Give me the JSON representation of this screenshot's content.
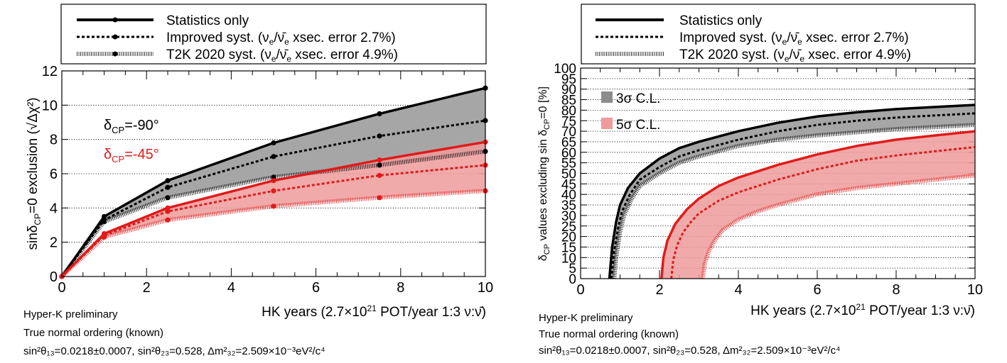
{
  "colors": {
    "black": "#000000",
    "red": "#e01b1b",
    "grey_band": "#a6a6a6",
    "pink_band": "#ef9b9b",
    "legend_bg": "#ffffff"
  },
  "line_styles": {
    "stat_only": "solid",
    "improved": "dashed",
    "t2k2020": "dotted"
  },
  "legend": [
    {
      "label": "Statistics only",
      "style": "stat_only"
    },
    {
      "label": "Improved syst. (ν_e/ν̄_e xsec. error 2.7%)",
      "style": "improved"
    },
    {
      "label": "T2K 2020 syst. (ν_e/ν̄_e xsec. error 4.9%)",
      "style": "t2k2020"
    }
  ],
  "notes": {
    "line1": "Hyper-K preliminary",
    "line2": "True normal ordering (known)",
    "line3": "sin²θ₁₃=0.0218±0.0007, sin²θ₂₃=0.528, Δm²₃₂=2.509×10⁻³eV²/c⁴"
  },
  "chart_data": [
    {
      "type": "line",
      "xlabel": "HK years (2.7×10²¹ POT/year 1:3 ν:ν̄)",
      "ylabel": "sinδ_CP=0 exclusion (√Δχ²)",
      "xlim": [
        0,
        10
      ],
      "ylim": [
        0,
        12
      ],
      "x_ticks": [
        0,
        2,
        4,
        6,
        8,
        10
      ],
      "y_ticks": [
        0,
        2,
        4,
        6,
        8,
        10,
        12
      ],
      "grid": "horizontal",
      "inline_labels": [
        {
          "text": "δ_CP=-90°",
          "color": "black"
        },
        {
          "text": "δ_CP=-45°",
          "color": "red"
        }
      ],
      "x": [
        0,
        1,
        2.5,
        5,
        7.5,
        10
      ],
      "series": [
        {
          "group": "δ_CP=-90°",
          "style": "stat_only",
          "values": [
            0,
            3.5,
            5.6,
            7.8,
            9.5,
            11.0
          ]
        },
        {
          "group": "δ_CP=-90°",
          "style": "improved",
          "values": [
            0,
            3.3,
            5.2,
            7.0,
            8.2,
            9.1
          ]
        },
        {
          "group": "δ_CP=-90°",
          "style": "t2k2020",
          "values": [
            0,
            3.2,
            4.6,
            5.8,
            6.5,
            7.3
          ]
        },
        {
          "group": "δ_CP=-45°",
          "style": "stat_only",
          "values": [
            0,
            2.5,
            4.0,
            5.6,
            6.8,
            7.85
          ]
        },
        {
          "group": "δ_CP=-45°",
          "style": "improved",
          "values": [
            0,
            2.4,
            3.8,
            5.0,
            5.9,
            6.5
          ]
        },
        {
          "group": "δ_CP=-45°",
          "style": "t2k2020",
          "values": [
            0,
            2.3,
            3.3,
            4.1,
            4.6,
            5.0
          ]
        }
      ]
    },
    {
      "type": "line",
      "xlabel": "HK years (2.7×10²¹ POT/year 1:3 ν:ν̄)",
      "ylabel": "δ_CP values excluding sin δ_CP=0 [%]",
      "xlim": [
        0,
        10
      ],
      "ylim": [
        0,
        100
      ],
      "x_ticks": [
        0,
        2,
        4,
        6,
        8,
        10
      ],
      "y_ticks": [
        0,
        5,
        10,
        15,
        20,
        25,
        30,
        35,
        40,
        45,
        50,
        55,
        60,
        65,
        70,
        75,
        80,
        85,
        90,
        95,
        100
      ],
      "grid": "horizontal",
      "band_legend": [
        {
          "label": "3σ C.L.",
          "color": "grey_band"
        },
        {
          "label": "5σ C.L.",
          "color": "pink_band"
        }
      ],
      "series": [
        {
          "group": "3σ C.L.",
          "style": "stat_only",
          "x": [
            0.73,
            0.8,
            0.9,
            1.0,
            1.2,
            1.5,
            2.0,
            2.5,
            3.0,
            4.0,
            5.0,
            6.0,
            7.0,
            8.0,
            9.0,
            10.0
          ],
          "values": [
            0,
            15,
            27,
            35,
            43,
            50,
            57,
            62,
            65,
            70,
            74,
            77,
            79,
            80.5,
            81.5,
            82.5
          ]
        },
        {
          "group": "3σ C.L.",
          "style": "improved",
          "x": [
            0.78,
            0.85,
            0.95,
            1.05,
            1.25,
            1.5,
            2.0,
            2.5,
            3.0,
            4.0,
            5.0,
            6.0,
            7.0,
            8.0,
            9.0,
            10.0
          ],
          "values": [
            0,
            13,
            24,
            32,
            40,
            47,
            53,
            58,
            61,
            66,
            70,
            73,
            75,
            76.5,
            77.5,
            78.5
          ]
        },
        {
          "group": "3σ C.L.",
          "style": "t2k2020",
          "x": [
            0.85,
            0.9,
            1.0,
            1.1,
            1.3,
            1.5,
            2.0,
            2.5,
            3.0,
            4.0,
            5.0,
            6.0,
            7.0,
            8.0,
            9.0,
            10.0
          ],
          "values": [
            0,
            10,
            22,
            30,
            38,
            44,
            50,
            55,
            58,
            63,
            66,
            68,
            69.5,
            71,
            72,
            73
          ]
        },
        {
          "group": "5σ C.L.",
          "style": "stat_only",
          "x": [
            2.05,
            2.1,
            2.2,
            2.4,
            2.7,
            3.0,
            3.5,
            4.0,
            5.0,
            6.0,
            7.0,
            8.0,
            9.0,
            10.0
          ],
          "values": [
            0,
            10,
            18,
            26,
            33,
            38,
            44,
            48,
            54,
            59,
            63,
            66,
            68,
            70
          ]
        },
        {
          "group": "5σ C.L.",
          "style": "improved",
          "x": [
            2.3,
            2.35,
            2.45,
            2.6,
            2.8,
            3.0,
            3.5,
            4.0,
            5.0,
            6.0,
            7.0,
            8.0,
            9.0,
            10.0
          ],
          "values": [
            0,
            9,
            16,
            22,
            27,
            31,
            37,
            41,
            47,
            52,
            56,
            58.5,
            60.5,
            62.5
          ]
        },
        {
          "group": "5σ C.L.",
          "style": "t2k2020",
          "x": [
            3.1,
            3.15,
            3.25,
            3.4,
            3.6,
            4.0,
            4.5,
            5.0,
            6.0,
            7.0,
            8.0,
            9.0,
            10.0
          ],
          "values": [
            0,
            7,
            13,
            18,
            23,
            28,
            32,
            35,
            40,
            43,
            45,
            47,
            49
          ]
        }
      ]
    }
  ]
}
